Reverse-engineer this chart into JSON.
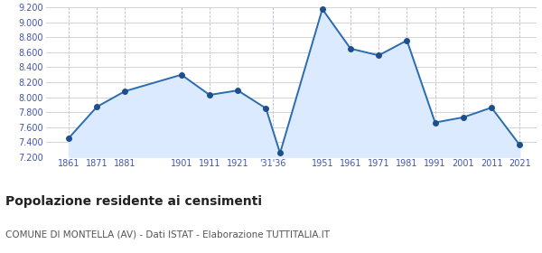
{
  "years": [
    1861,
    1871,
    1881,
    1901,
    1911,
    1921,
    1931,
    1936,
    1951,
    1961,
    1971,
    1981,
    1991,
    2001,
    2011,
    2021
  ],
  "population": [
    7450,
    7870,
    8080,
    8300,
    8030,
    8090,
    7850,
    7250,
    9180,
    8650,
    8560,
    8760,
    7660,
    7730,
    7860,
    7360
  ],
  "ylim": [
    7200,
    9200
  ],
  "yticks": [
    7200,
    7400,
    7600,
    7800,
    8000,
    8200,
    8400,
    8600,
    8800,
    9000,
    9200
  ],
  "xlim_left": 1853,
  "xlim_right": 2027,
  "xtick_positions": [
    1861,
    1871,
    1881,
    1901,
    1911,
    1921,
    1933.5,
    1951,
    1961,
    1971,
    1981,
    1991,
    2001,
    2011,
    2021
  ],
  "xtick_labels": [
    "1861",
    "1871",
    "1881",
    "1901",
    "1911",
    "1921",
    "'31'36",
    "1951",
    "1961",
    "1971",
    "1981",
    "1991",
    "2001",
    "2011",
    "2021"
  ],
  "line_color": "#2b6cb0",
  "fill_color": "#dbeafe",
  "marker_color": "#1e4e8c",
  "background_color": "#ffffff",
  "grid_color": "#cccccc",
  "grid_color_x": "#bbbbcc",
  "title": "Popolazione residente ai censimenti",
  "subtitle": "COMUNE DI MONTELLA (AV) - Dati ISTAT - Elaborazione TUTTITALIA.IT",
  "title_fontsize": 10,
  "subtitle_fontsize": 7.5,
  "tick_fontsize": 7,
  "tick_color": "#4455aa",
  "title_color": "#222222",
  "subtitle_color": "#555555"
}
